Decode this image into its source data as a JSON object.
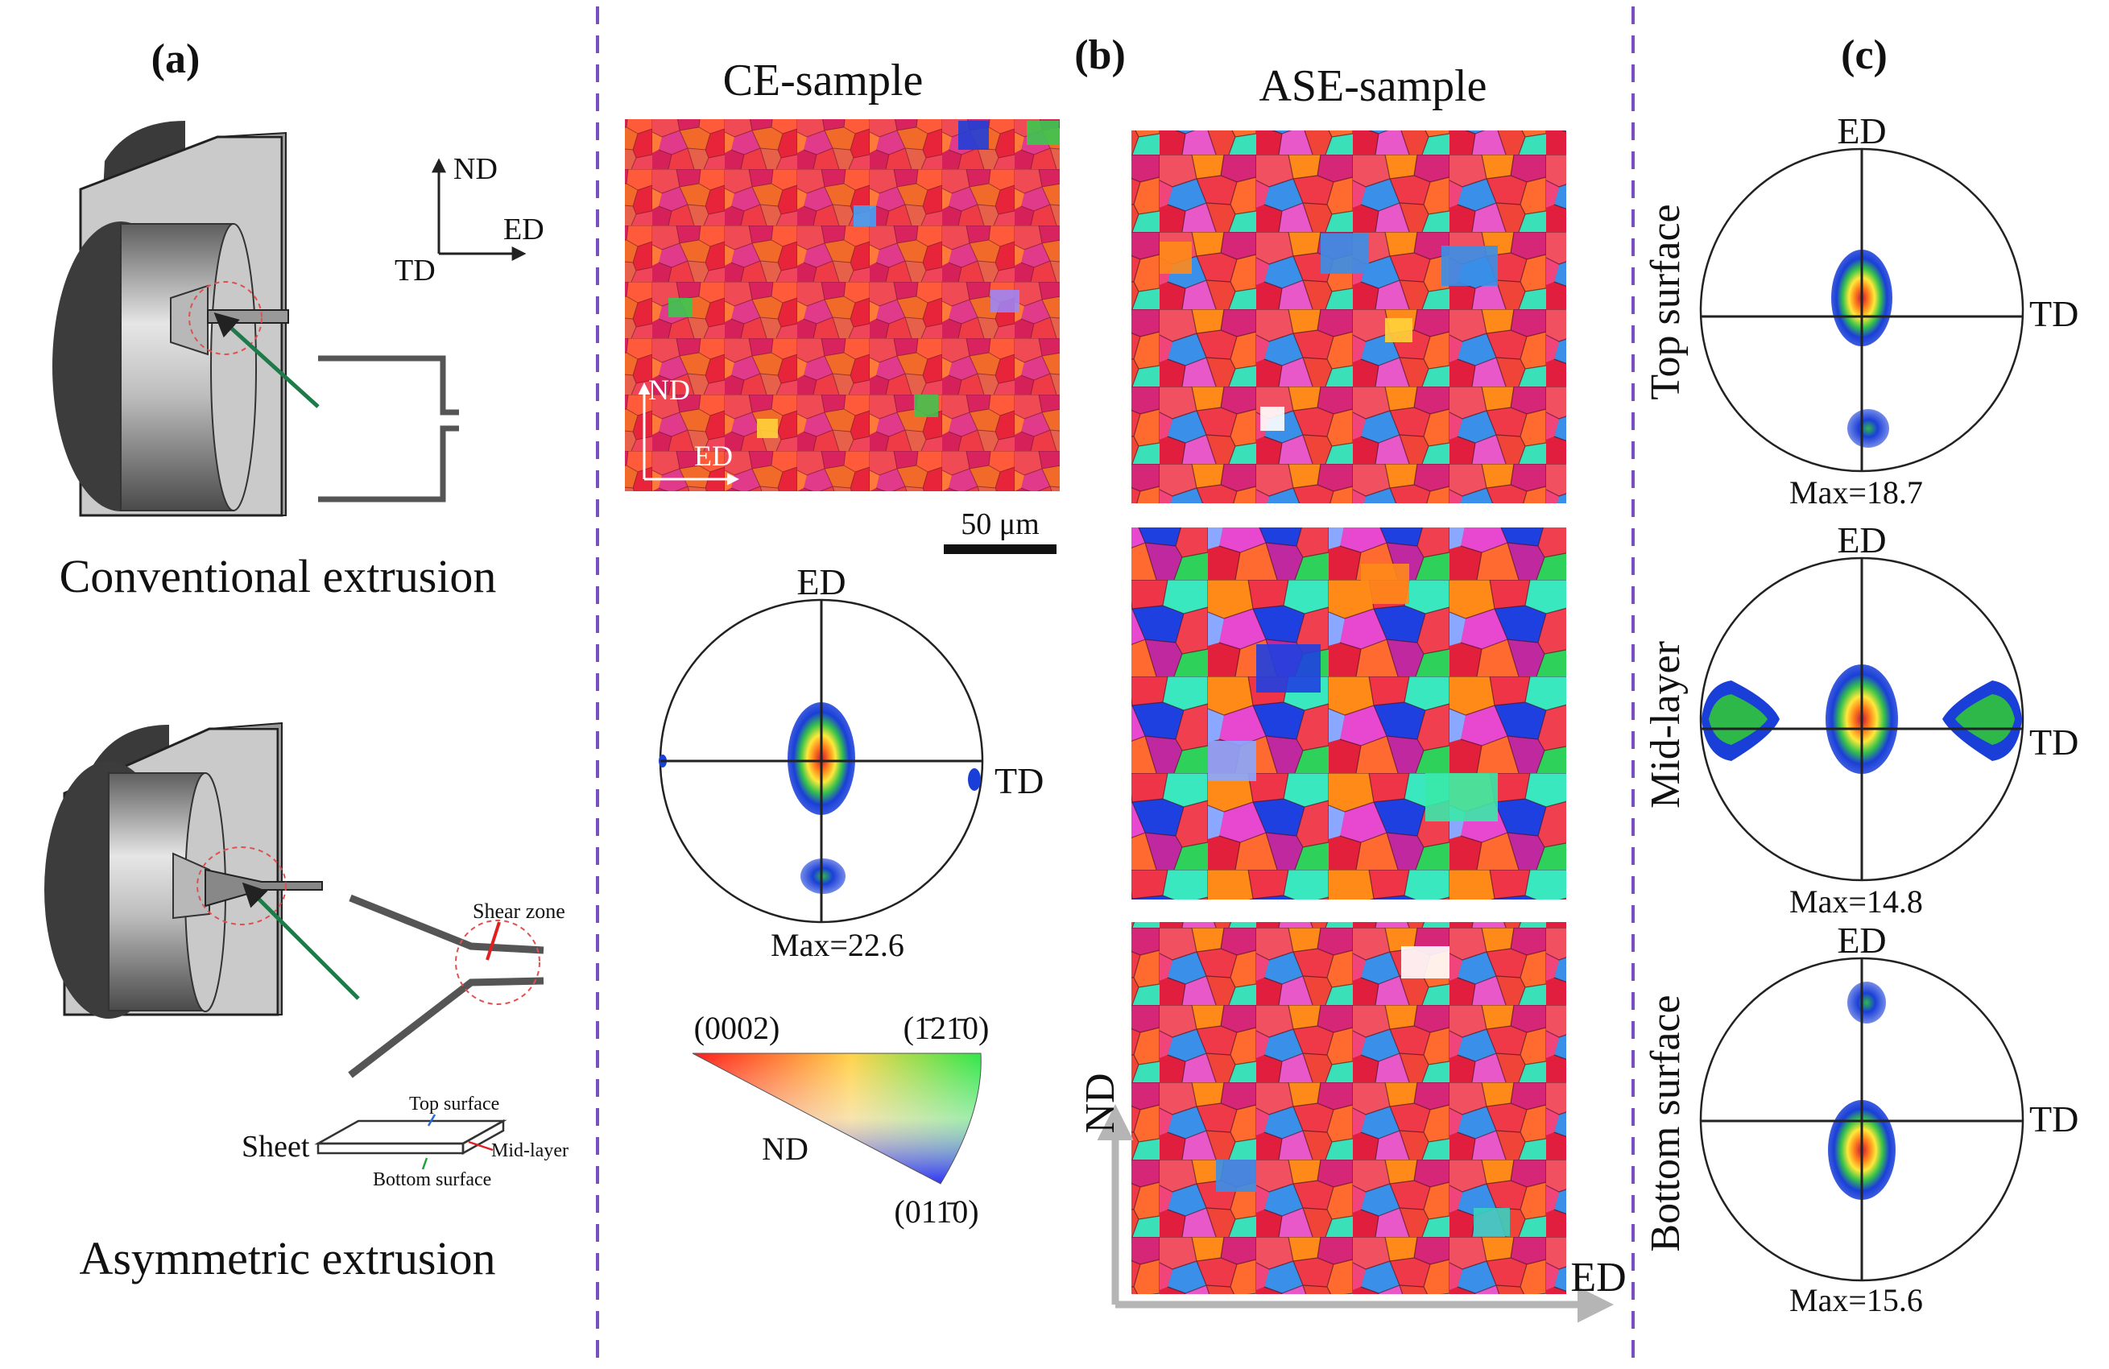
{
  "panel_a": {
    "label": "(a)",
    "conventional_caption": "Conventional extrusion",
    "asymmetric_caption": "Asymmetric extrusion",
    "axes": {
      "nd": "ND",
      "ed": "ED",
      "td": "TD"
    },
    "shear_zone": "Shear zone",
    "sheet_label": "Sheet",
    "top_surface": "Top surface",
    "mid_layer": "Mid-layer",
    "bottom_surface": "Bottom surface"
  },
  "panel_b": {
    "label": "(b)",
    "ce_title": "CE-sample",
    "ase_title": "ASE-sample",
    "map_axis_nd": "ND",
    "map_axis_ed": "ED",
    "scale_bar": "50 μm",
    "ce_pole_figure": {
      "top": "ED",
      "right": "TD",
      "max": "Max=22.6"
    },
    "ipf_key": {
      "corner_0002": "(0002)",
      "corner_1210": "(1̄21̄0)",
      "corner_0110": "(011̄0)",
      "direction": "ND"
    },
    "ase_axis_nd": "ND",
    "ase_axis_ed": "ED"
  },
  "panel_c": {
    "label": "(c)",
    "pole_figures": [
      {
        "layer": "Top surface",
        "top": "ED",
        "right": "TD",
        "max": "Max=18.7"
      },
      {
        "layer": "Mid-layer",
        "top": "ED",
        "right": "TD",
        "max": "Max=14.8"
      },
      {
        "layer": "Bottom surface",
        "top": "ED",
        "right": "TD",
        "max": "Max=15.6"
      }
    ]
  },
  "colors": {
    "divider": "#7b4fc4",
    "die": "#c6c6c6",
    "die_dark": "#5a5a5a",
    "arrow_green": "#1f7a4a",
    "ebsd_red": "#e8303a"
  }
}
